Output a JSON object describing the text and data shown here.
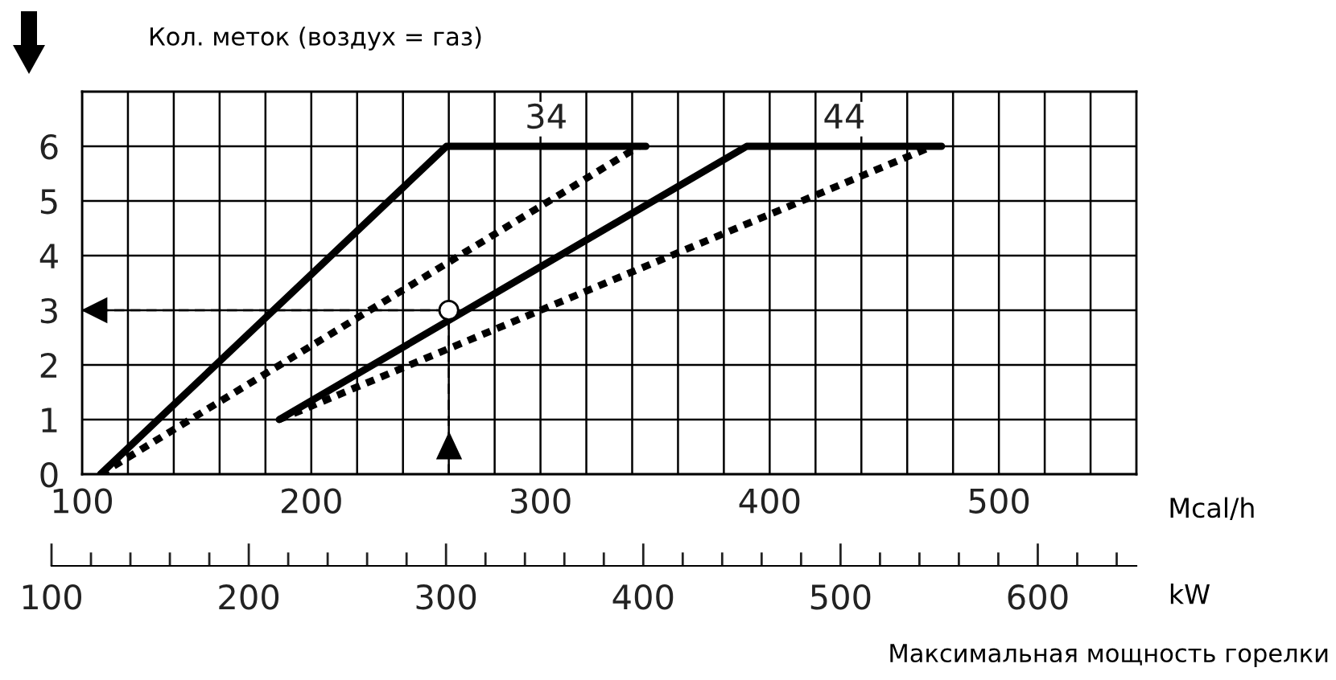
{
  "chart_data": {
    "type": "line",
    "title": "Кол. меток (воздух = газ)",
    "xlabel": "Mcal/h",
    "x2label": "kW",
    "series": [
      {
        "color": "#000000",
        "line_style": "solid",
        "x": [
          108,
          259,
          346
        ],
        "values": [
          0,
          6,
          6
        ]
      },
      {
        "color": "#000000",
        "line_style": "dashed",
        "x": [
          108,
          343
        ],
        "values": [
          0,
          6
        ]
      },
      {
        "color": "#000000",
        "line_style": "solid",
        "x": [
          186,
          390,
          475
        ],
        "values": [
          1,
          6,
          6
        ]
      },
      {
        "color": "#000000",
        "line_style": "dashed",
        "x": [
          186,
          471
        ],
        "values": [
          1,
          6
        ]
      },
      {
        "type": "scatter",
        "color": "#000000",
        "marker": "circle",
        "x": [
          260
        ],
        "values": [
          3
        ]
      }
    ],
    "ref_lines": [
      {
        "axis": "y",
        "value": 3,
        "line_style": "dashed",
        "color": "#000000"
      },
      {
        "axis": "x",
        "value": 260,
        "line_style": "dashed",
        "color": "#000000"
      }
    ],
    "annotations": [
      "34",
      "44",
      "Максимальная мощность горелки"
    ],
    "xlim": [
      100,
      560
    ],
    "xticks": [
      100,
      {
        "value": 120,
        "label": null
      },
      {
        "value": 140,
        "label": null
      },
      {
        "value": 160,
        "label": null
      },
      {
        "value": 180,
        "label": null
      },
      200,
      {
        "value": 220,
        "label": null
      },
      {
        "value": 240,
        "label": null
      },
      {
        "value": 260,
        "label": null
      },
      {
        "value": 280,
        "label": null
      },
      300,
      {
        "value": 320,
        "label": null
      },
      {
        "value": 340,
        "label": null
      },
      {
        "value": 360,
        "label": null
      },
      {
        "value": 380,
        "label": null
      },
      400,
      {
        "value": 420,
        "label": null
      },
      {
        "value": 440,
        "label": null
      },
      {
        "value": 460,
        "label": null
      },
      {
        "value": 480,
        "label": null
      },
      500,
      {
        "value": 520,
        "label": null
      },
      {
        "value": 540,
        "label": null
      }
    ],
    "ylim": [
      0,
      7
    ],
    "yticks": [
      0,
      1,
      2,
      3,
      4,
      5,
      6
    ],
    "x2lim": [
      100,
      650
    ],
    "x2ticks": [
      100,
      200,
      300,
      400,
      500,
      600
    ],
    "grid": true
  }
}
